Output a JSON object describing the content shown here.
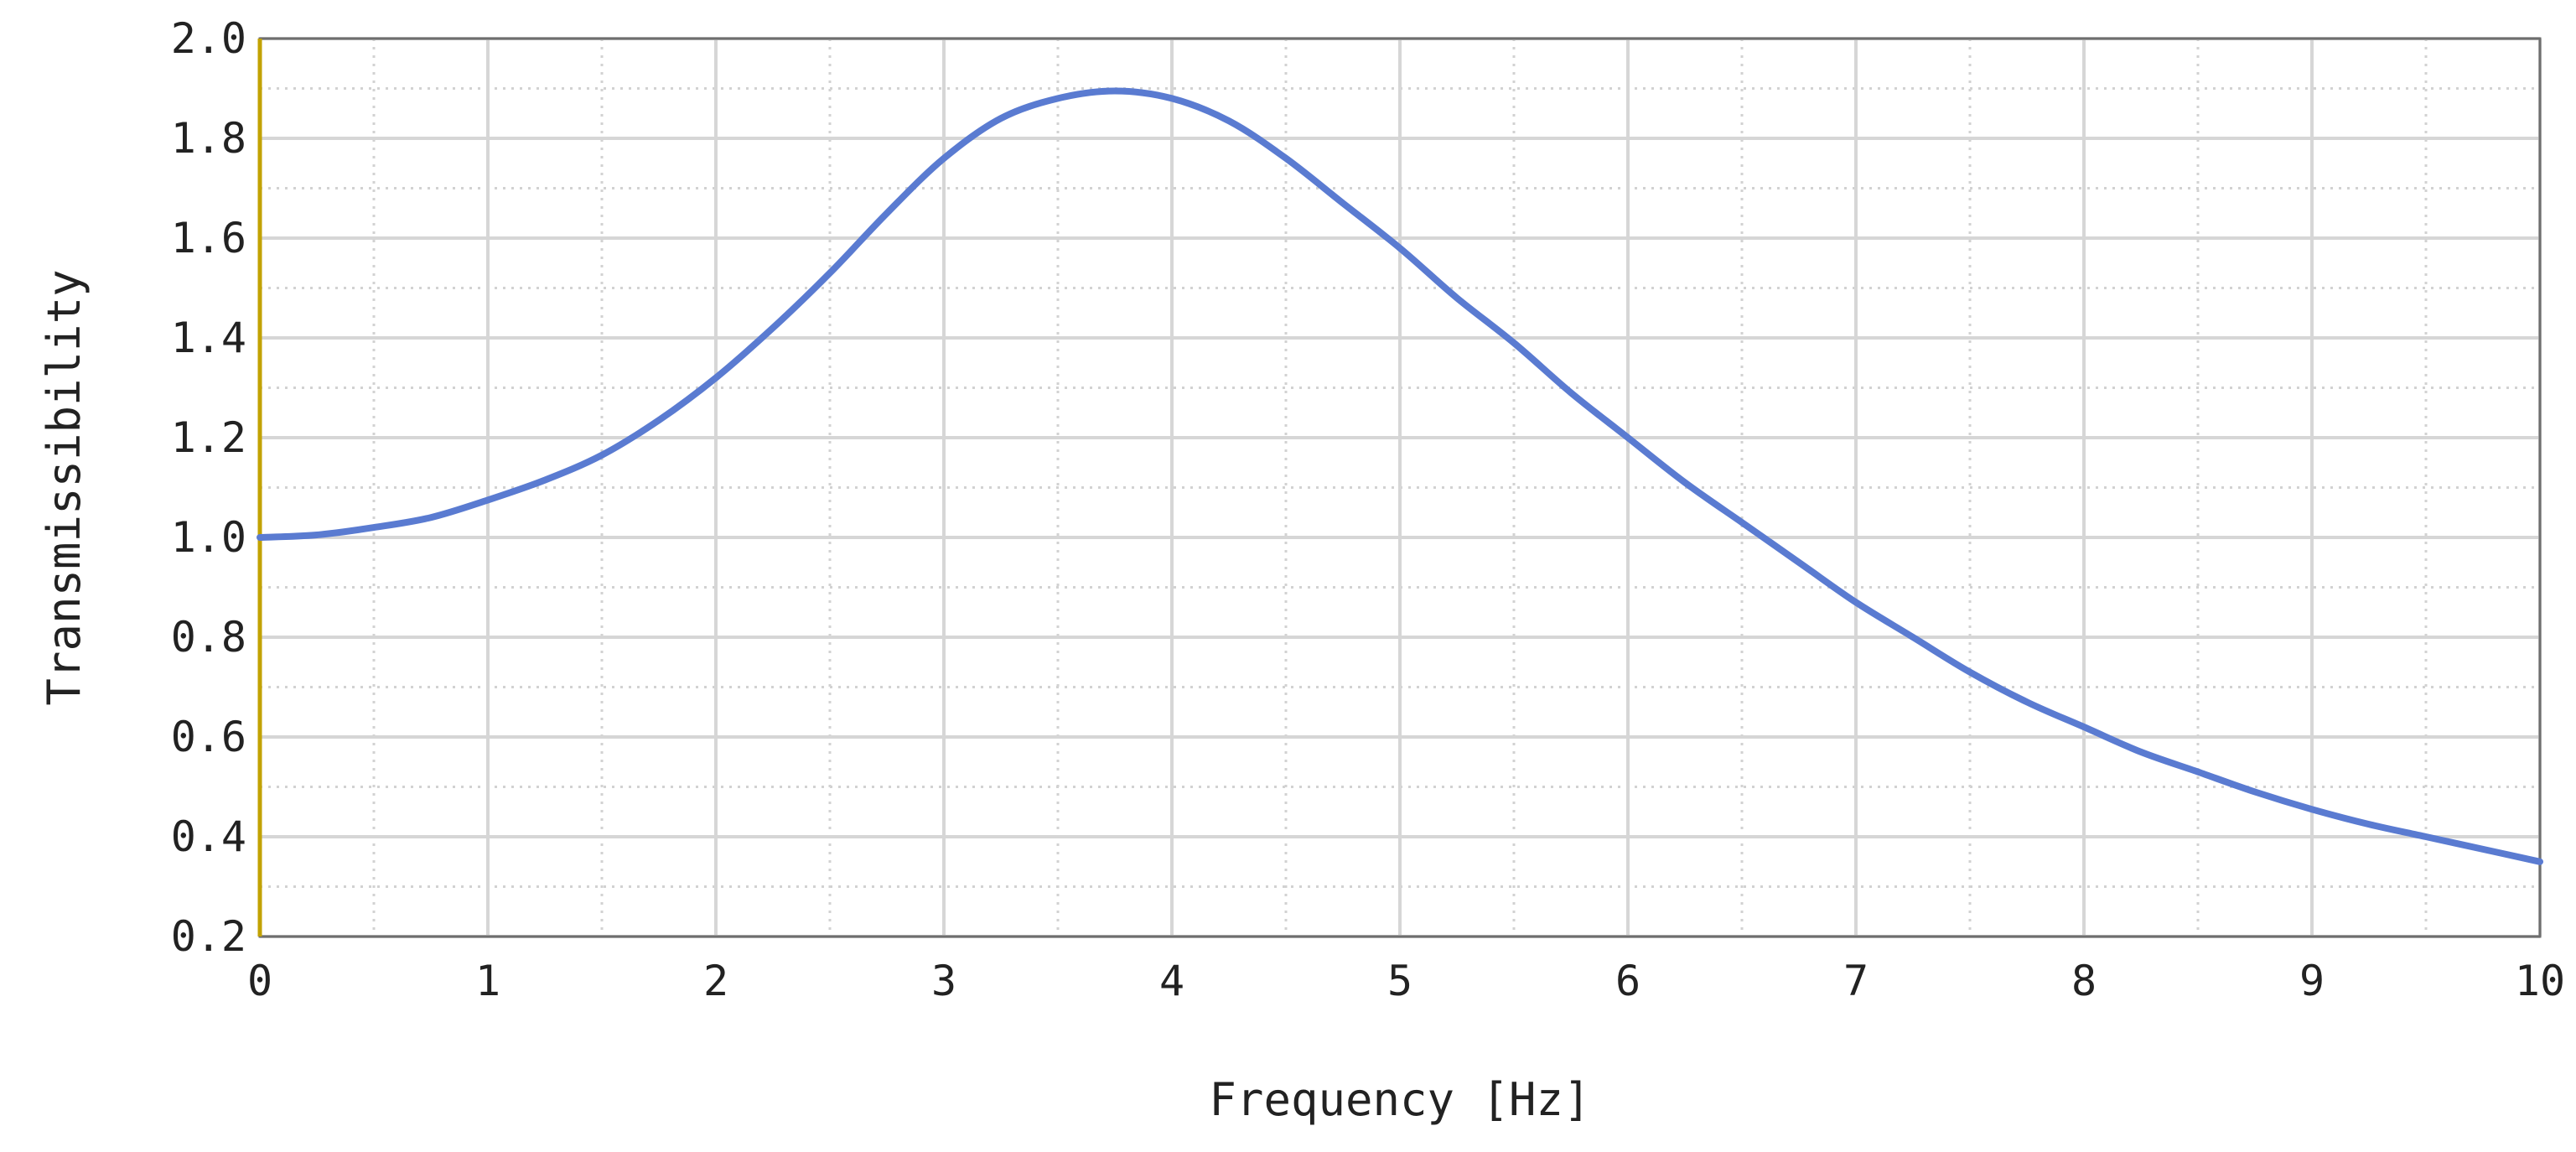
{
  "chart_data": {
    "type": "line",
    "xlabel": "Frequency [Hz]",
    "ylabel": "Transmissibility",
    "xlim": [
      0,
      10
    ],
    "ylim": [
      0.2,
      2.0
    ],
    "xticks": [
      0,
      1,
      2,
      3,
      4,
      5,
      6,
      7,
      8,
      9,
      10
    ],
    "yticks": [
      0.2,
      0.4,
      0.6,
      0.8,
      1.0,
      1.2,
      1.4,
      1.6,
      1.8,
      2.0
    ],
    "xtick_labels": [
      "0",
      "1",
      "2",
      "3",
      "4",
      "5",
      "6",
      "7",
      "8",
      "9",
      "10"
    ],
    "ytick_labels": [
      "0.2",
      "0.4",
      "0.6",
      "0.8",
      "1.0",
      "1.2",
      "1.4",
      "1.6",
      "1.8",
      "2.0"
    ],
    "grid": true,
    "minor_grid": true,
    "legend": false,
    "colors": {
      "series": "#5a7bd1",
      "frame": "#6e6e6e",
      "zero_axis": "#c2a200"
    },
    "series": [
      {
        "x": [
          0,
          0.25,
          0.5,
          0.75,
          1.0,
          1.25,
          1.5,
          1.75,
          2.0,
          2.25,
          2.5,
          2.75,
          3.0,
          3.25,
          3.5,
          3.75,
          4.0,
          4.25,
          4.5,
          4.75,
          5.0,
          5.25,
          5.5,
          5.75,
          6.0,
          6.25,
          6.5,
          6.75,
          7.0,
          7.25,
          7.5,
          7.75,
          8.0,
          8.25,
          8.5,
          8.75,
          9.0,
          9.25,
          9.5,
          9.75,
          10.0
        ],
        "y": [
          1.0,
          1.005,
          1.02,
          1.04,
          1.075,
          1.115,
          1.165,
          1.235,
          1.32,
          1.42,
          1.53,
          1.65,
          1.76,
          1.84,
          1.88,
          1.895,
          1.88,
          1.835,
          1.76,
          1.67,
          1.58,
          1.48,
          1.39,
          1.29,
          1.2,
          1.11,
          1.03,
          0.95,
          0.87,
          0.8,
          0.73,
          0.67,
          0.62,
          0.57,
          0.53,
          0.49,
          0.455,
          0.425,
          0.4,
          0.375,
          0.35
        ]
      }
    ]
  }
}
